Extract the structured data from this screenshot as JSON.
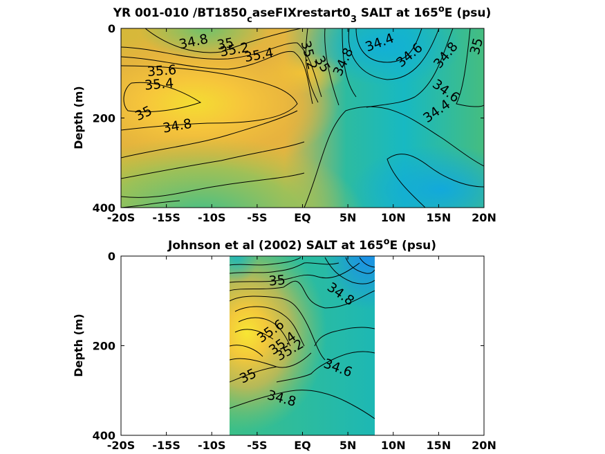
{
  "chart_data": [
    {
      "type": "heatmap",
      "subtype": "filled-contour",
      "title_parts": [
        "YR 001-010 /BT1850",
        "c",
        "aseFIXrestart0",
        "3",
        " SALT at 165",
        "o",
        "E (psu)"
      ],
      "xlabel": "",
      "ylabel": "Depth (m)",
      "x_ticks": [
        "-20S",
        "-15S",
        "-10S",
        "-5S",
        "EQ",
        "5N",
        "10N",
        "15N",
        "20N"
      ],
      "x_values": [
        -20,
        -15,
        -10,
        -5,
        0,
        5,
        10,
        15,
        20
      ],
      "xlim": [
        -20,
        20
      ],
      "y_ticks": [
        "0",
        "200",
        "400"
      ],
      "y_values": [
        0,
        200,
        400
      ],
      "ylim": [
        400,
        0
      ],
      "y_reversed": true,
      "data_extent_x": [
        -20,
        20
      ],
      "colormap": "parula",
      "contour_levels": [
        34.4,
        34.6,
        34.8,
        35,
        35.2,
        35.4,
        35.6
      ],
      "contour_labels": [
        {
          "text": "34.8",
          "x": -12,
          "y": 30,
          "angle": -12
        },
        {
          "text": "35",
          "x": -8.5,
          "y": 35,
          "angle": -10
        },
        {
          "text": "35.2",
          "x": -7.5,
          "y": 48,
          "angle": -10
        },
        {
          "text": "35.4",
          "x": -4.8,
          "y": 60,
          "angle": -10
        },
        {
          "text": "35.6",
          "x": -15.5,
          "y": 95,
          "angle": -4
        },
        {
          "text": "35.4",
          "x": -15.8,
          "y": 125,
          "angle": -5
        },
        {
          "text": "35",
          "x": -17.5,
          "y": 190,
          "angle": -25
        },
        {
          "text": "34.8",
          "x": -13.8,
          "y": 218,
          "angle": -10
        },
        {
          "text": "35.2",
          "x": 0.7,
          "y": 60,
          "angle": 75
        },
        {
          "text": "35",
          "x": 2.2,
          "y": 80,
          "angle": 60
        },
        {
          "text": "34.8",
          "x": 4.5,
          "y": 75,
          "angle": -65
        },
        {
          "text": "34.4",
          "x": 8.5,
          "y": 32,
          "angle": -20
        },
        {
          "text": "34.6",
          "x": 11.8,
          "y": 60,
          "angle": -40
        },
        {
          "text": "34.8",
          "x": 15.8,
          "y": 60,
          "angle": -50
        },
        {
          "text": "35",
          "x": 19.2,
          "y": 40,
          "angle": -75
        },
        {
          "text": "34.6",
          "x": 15.8,
          "y": 140,
          "angle": 35
        },
        {
          "text": "34.4",
          "x": 14.8,
          "y": 185,
          "angle": -35
        }
      ]
    },
    {
      "type": "heatmap",
      "subtype": "filled-contour",
      "title_parts": [
        "Johnson et al (2002) SALT at 165",
        "o",
        "E (psu)"
      ],
      "xlabel": "",
      "ylabel": "Depth (m)",
      "x_ticks": [
        "-20S",
        "-15S",
        "-10S",
        "-5S",
        "EQ",
        "5N",
        "10N",
        "15N",
        "20N"
      ],
      "x_values": [
        -20,
        -15,
        -10,
        -5,
        0,
        5,
        10,
        15,
        20
      ],
      "xlim": [
        -20,
        20
      ],
      "y_ticks": [
        "0",
        "200",
        "400"
      ],
      "y_values": [
        0,
        200,
        400
      ],
      "ylim": [
        400,
        0
      ],
      "y_reversed": true,
      "data_extent_x": [
        -8,
        8
      ],
      "colormap": "parula",
      "contour_levels": [
        34.6,
        34.8,
        35,
        35.2,
        35.4,
        35.6
      ],
      "contour_labels": [
        {
          "text": "35",
          "x": -2.8,
          "y": 55,
          "angle": -5
        },
        {
          "text": "34.8",
          "x": 4.2,
          "y": 85,
          "angle": 35
        },
        {
          "text": "35.6",
          "x": -3.5,
          "y": 168,
          "angle": -35
        },
        {
          "text": "35.4",
          "x": -2.2,
          "y": 195,
          "angle": -35
        },
        {
          "text": "35.2",
          "x": -1.4,
          "y": 210,
          "angle": -30
        },
        {
          "text": "34.6",
          "x": 3.9,
          "y": 250,
          "angle": 20
        },
        {
          "text": "35",
          "x": -6,
          "y": 268,
          "angle": -25
        },
        {
          "text": "34.8",
          "x": -2.3,
          "y": 318,
          "angle": 15
        }
      ]
    }
  ]
}
